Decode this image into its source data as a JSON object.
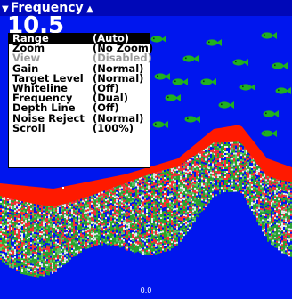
{
  "header": {
    "title": "Frequency",
    "partial_depth": "10.5"
  },
  "depth_label": "0.0",
  "colors": {
    "water": "#0016ee",
    "header_bar": "#0008b8",
    "bottom_strong": "#ff1a00",
    "bottom_weak": "#2aa82a",
    "fish": "#20b020",
    "menu_bg": "#ffffff",
    "menu_text": "#000000",
    "menu_selected_bg": "#000000",
    "menu_disabled_text": "#9a9a9a"
  },
  "menu": {
    "items": [
      {
        "label": "Range",
        "value": "(Auto)",
        "state": "selected"
      },
      {
        "label": "Zoom",
        "value": "(No Zoom)",
        "state": "normal"
      },
      {
        "label": "View",
        "value": "(Disabled)",
        "state": "disabled"
      },
      {
        "label": "Gain",
        "value": "(Normal)",
        "state": "normal"
      },
      {
        "label": "Target Level",
        "value": "(Normal)",
        "state": "normal"
      },
      {
        "label": "Whiteline",
        "value": "(Off)",
        "state": "normal"
      },
      {
        "label": "Frequency",
        "value": "(Dual)",
        "state": "normal"
      },
      {
        "label": "Depth Line",
        "value": "(Off)",
        "state": "normal"
      },
      {
        "label": "Noise Reject",
        "value": "(Normal)",
        "state": "normal"
      },
      {
        "label": "Scroll",
        "value": "(100%)",
        "state": "normal"
      }
    ]
  }
}
